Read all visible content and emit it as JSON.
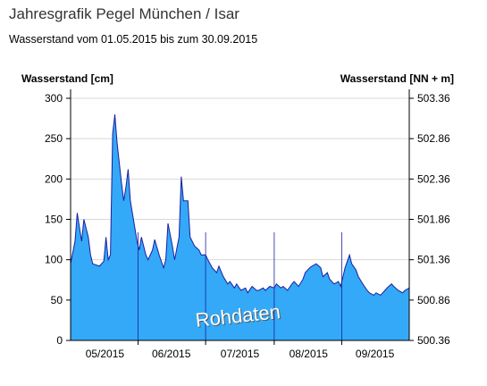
{
  "chart_data": {
    "type": "area",
    "title": "Jahresgrafik Pegel München / Isar",
    "subtitle": "Wasserstand vom 01.05.2015 bis zum 30.09.2015",
    "y_label": "Wasserstand [cm]",
    "y2_label": "Wasserstand [NN + m]",
    "annotation": "Rohdaten",
    "color": "#33a9f7",
    "line_color": "#1b1f9e",
    "x": [
      0,
      2,
      3,
      4,
      5,
      6,
      8,
      9,
      10,
      13,
      15,
      16,
      17,
      18,
      19,
      20,
      21,
      23,
      24,
      25,
      26,
      27,
      29,
      30,
      31,
      32,
      34,
      35,
      37,
      38,
      40,
      42,
      43,
      44,
      46,
      47,
      49,
      50,
      51,
      53,
      54,
      56,
      58,
      59,
      61,
      62,
      64,
      66,
      67,
      69,
      71,
      72,
      74,
      75,
      77,
      79,
      80,
      82,
      84,
      85,
      87,
      88,
      90,
      92,
      93,
      95,
      96,
      98,
      100,
      101,
      103,
      105,
      106,
      108,
      109,
      111,
      113,
      114,
      116,
      117,
      119,
      121,
      122,
      124,
      126,
      127,
      129,
      130,
      132,
      134,
      135,
      137,
      138,
      140,
      142,
      143,
      145,
      146,
      148,
      150,
      151,
      153
    ],
    "values": [
      95,
      123,
      158,
      140,
      123,
      150,
      128,
      106,
      95,
      92,
      98,
      128,
      100,
      106,
      256,
      280,
      245,
      195,
      173,
      190,
      212,
      173,
      140,
      123,
      112,
      128,
      106,
      100,
      112,
      125,
      106,
      90,
      100,
      145,
      117,
      100,
      128,
      203,
      173,
      173,
      128,
      117,
      112,
      106,
      106,
      100,
      90,
      84,
      92,
      79,
      70,
      73,
      65,
      70,
      62,
      65,
      59,
      67,
      62,
      62,
      65,
      62,
      67,
      65,
      70,
      65,
      67,
      62,
      70,
      73,
      67,
      76,
      84,
      90,
      92,
      95,
      90,
      79,
      84,
      76,
      70,
      73,
      67,
      90,
      106,
      95,
      87,
      79,
      70,
      62,
      59,
      56,
      59,
      56,
      62,
      65,
      70,
      67,
      62,
      59,
      62,
      65
    ],
    "xlim": [
      0,
      153
    ],
    "xticks": [
      {
        "value": 15.5,
        "label": "05/2015"
      },
      {
        "value": 45.5,
        "label": "06/2015"
      },
      {
        "value": 76.5,
        "label": "07/2015"
      },
      {
        "value": 107.5,
        "label": "08/2015"
      },
      {
        "value": 137.5,
        "label": "09/2015"
      }
    ],
    "ylim": [
      0,
      300
    ],
    "yticks": [
      0,
      50,
      100,
      150,
      200,
      250,
      300
    ],
    "y2lim": [
      500.36,
      503.36
    ],
    "y2ticks": [
      500.36,
      500.86,
      501.36,
      501.86,
      502.36,
      502.86,
      503.36
    ],
    "grid": true
  }
}
